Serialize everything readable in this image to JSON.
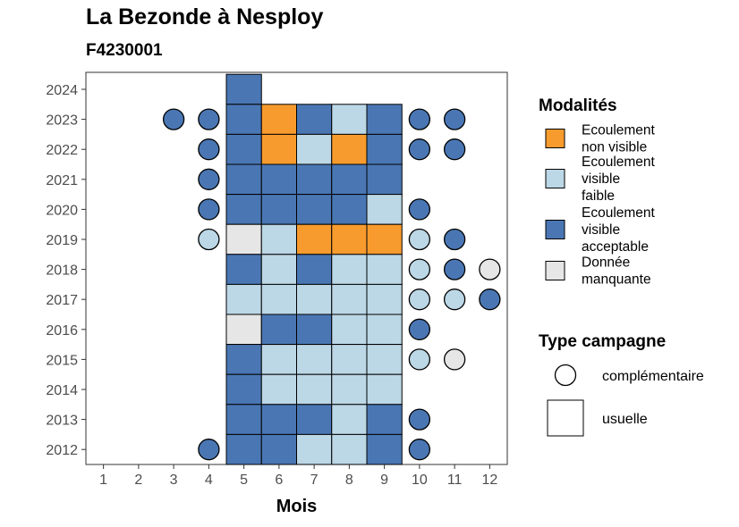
{
  "chart_data": {
    "type": "heatmap",
    "title": "La Bezonde à Nesploy",
    "subtitle": "F4230001",
    "xlabel": "Mois",
    "ylabel": "",
    "x_ticks": [
      1,
      2,
      3,
      4,
      5,
      6,
      7,
      8,
      9,
      10,
      11,
      12
    ],
    "y_ticks": [
      2012,
      2013,
      2014,
      2015,
      2016,
      2017,
      2018,
      2019,
      2020,
      2021,
      2022,
      2023,
      2024
    ],
    "xlim": [
      0.5,
      12.5
    ],
    "ylim": [
      2011.5,
      2024.5
    ],
    "grid": false,
    "legend": {
      "placement": "right",
      "modalites_title": "Modalités",
      "modalites": [
        {
          "key": "non_visible",
          "label": [
            "Ecoulement",
            "non visible"
          ],
          "color": "#F89B2E"
        },
        {
          "key": "faible",
          "label": [
            "Ecoulement",
            "visible",
            "faible"
          ],
          "color": "#BCD7E6"
        },
        {
          "key": "acceptable",
          "label": [
            "Ecoulement",
            "visible",
            "acceptable"
          ],
          "color": "#4A77B4"
        },
        {
          "key": "manquante",
          "label": [
            "Donnée",
            "manquante"
          ],
          "color": "#E6E6E6"
        }
      ],
      "campagne_title": "Type campagne",
      "campagnes": [
        {
          "key": "complementaire",
          "label": "complémentaire",
          "shape": "circle"
        },
        {
          "key": "usuelle",
          "label": "usuelle",
          "shape": "square"
        }
      ]
    },
    "observations": [
      {
        "year": 2024,
        "month": 5,
        "modalite": "acceptable",
        "campagne": "usuelle"
      },
      {
        "year": 2023,
        "month": 3,
        "modalite": "acceptable",
        "campagne": "complementaire"
      },
      {
        "year": 2023,
        "month": 4,
        "modalite": "acceptable",
        "campagne": "complementaire"
      },
      {
        "year": 2023,
        "month": 5,
        "modalite": "acceptable",
        "campagne": "usuelle"
      },
      {
        "year": 2023,
        "month": 6,
        "modalite": "non_visible",
        "campagne": "usuelle"
      },
      {
        "year": 2023,
        "month": 7,
        "modalite": "acceptable",
        "campagne": "usuelle"
      },
      {
        "year": 2023,
        "month": 8,
        "modalite": "faible",
        "campagne": "usuelle"
      },
      {
        "year": 2023,
        "month": 9,
        "modalite": "acceptable",
        "campagne": "usuelle"
      },
      {
        "year": 2023,
        "month": 10,
        "modalite": "acceptable",
        "campagne": "complementaire"
      },
      {
        "year": 2023,
        "month": 11,
        "modalite": "acceptable",
        "campagne": "complementaire"
      },
      {
        "year": 2022,
        "month": 4,
        "modalite": "acceptable",
        "campagne": "complementaire"
      },
      {
        "year": 2022,
        "month": 5,
        "modalite": "acceptable",
        "campagne": "usuelle"
      },
      {
        "year": 2022,
        "month": 6,
        "modalite": "non_visible",
        "campagne": "usuelle"
      },
      {
        "year": 2022,
        "month": 7,
        "modalite": "faible",
        "campagne": "usuelle"
      },
      {
        "year": 2022,
        "month": 8,
        "modalite": "non_visible",
        "campagne": "usuelle"
      },
      {
        "year": 2022,
        "month": 9,
        "modalite": "acceptable",
        "campagne": "usuelle"
      },
      {
        "year": 2022,
        "month": 10,
        "modalite": "acceptable",
        "campagne": "complementaire"
      },
      {
        "year": 2022,
        "month": 11,
        "modalite": "acceptable",
        "campagne": "complementaire"
      },
      {
        "year": 2021,
        "month": 4,
        "modalite": "acceptable",
        "campagne": "complementaire"
      },
      {
        "year": 2021,
        "month": 5,
        "modalite": "acceptable",
        "campagne": "usuelle"
      },
      {
        "year": 2021,
        "month": 6,
        "modalite": "acceptable",
        "campagne": "usuelle"
      },
      {
        "year": 2021,
        "month": 7,
        "modalite": "acceptable",
        "campagne": "usuelle"
      },
      {
        "year": 2021,
        "month": 8,
        "modalite": "acceptable",
        "campagne": "usuelle"
      },
      {
        "year": 2021,
        "month": 9,
        "modalite": "acceptable",
        "campagne": "usuelle"
      },
      {
        "year": 2020,
        "month": 4,
        "modalite": "acceptable",
        "campagne": "complementaire"
      },
      {
        "year": 2020,
        "month": 5,
        "modalite": "acceptable",
        "campagne": "usuelle"
      },
      {
        "year": 2020,
        "month": 6,
        "modalite": "acceptable",
        "campagne": "usuelle"
      },
      {
        "year": 2020,
        "month": 7,
        "modalite": "acceptable",
        "campagne": "usuelle"
      },
      {
        "year": 2020,
        "month": 8,
        "modalite": "acceptable",
        "campagne": "usuelle"
      },
      {
        "year": 2020,
        "month": 9,
        "modalite": "faible",
        "campagne": "usuelle"
      },
      {
        "year": 2020,
        "month": 10,
        "modalite": "acceptable",
        "campagne": "complementaire"
      },
      {
        "year": 2019,
        "month": 4,
        "modalite": "faible",
        "campagne": "complementaire"
      },
      {
        "year": 2019,
        "month": 5,
        "modalite": "manquante",
        "campagne": "usuelle"
      },
      {
        "year": 2019,
        "month": 6,
        "modalite": "faible",
        "campagne": "usuelle"
      },
      {
        "year": 2019,
        "month": 7,
        "modalite": "non_visible",
        "campagne": "usuelle"
      },
      {
        "year": 2019,
        "month": 8,
        "modalite": "non_visible",
        "campagne": "usuelle"
      },
      {
        "year": 2019,
        "month": 9,
        "modalite": "non_visible",
        "campagne": "usuelle"
      },
      {
        "year": 2019,
        "month": 10,
        "modalite": "faible",
        "campagne": "complementaire"
      },
      {
        "year": 2019,
        "month": 11,
        "modalite": "acceptable",
        "campagne": "complementaire"
      },
      {
        "year": 2018,
        "month": 5,
        "modalite": "acceptable",
        "campagne": "usuelle"
      },
      {
        "year": 2018,
        "month": 6,
        "modalite": "faible",
        "campagne": "usuelle"
      },
      {
        "year": 2018,
        "month": 7,
        "modalite": "acceptable",
        "campagne": "usuelle"
      },
      {
        "year": 2018,
        "month": 8,
        "modalite": "faible",
        "campagne": "usuelle"
      },
      {
        "year": 2018,
        "month": 9,
        "modalite": "faible",
        "campagne": "usuelle"
      },
      {
        "year": 2018,
        "month": 10,
        "modalite": "faible",
        "campagne": "complementaire"
      },
      {
        "year": 2018,
        "month": 11,
        "modalite": "acceptable",
        "campagne": "complementaire"
      },
      {
        "year": 2018,
        "month": 12,
        "modalite": "manquante",
        "campagne": "complementaire"
      },
      {
        "year": 2017,
        "month": 5,
        "modalite": "faible",
        "campagne": "usuelle"
      },
      {
        "year": 2017,
        "month": 6,
        "modalite": "faible",
        "campagne": "usuelle"
      },
      {
        "year": 2017,
        "month": 7,
        "modalite": "faible",
        "campagne": "usuelle"
      },
      {
        "year": 2017,
        "month": 8,
        "modalite": "faible",
        "campagne": "usuelle"
      },
      {
        "year": 2017,
        "month": 9,
        "modalite": "faible",
        "campagne": "usuelle"
      },
      {
        "year": 2017,
        "month": 10,
        "modalite": "faible",
        "campagne": "complementaire"
      },
      {
        "year": 2017,
        "month": 11,
        "modalite": "faible",
        "campagne": "complementaire"
      },
      {
        "year": 2017,
        "month": 12,
        "modalite": "acceptable",
        "campagne": "complementaire"
      },
      {
        "year": 2016,
        "month": 5,
        "modalite": "manquante",
        "campagne": "usuelle"
      },
      {
        "year": 2016,
        "month": 6,
        "modalite": "acceptable",
        "campagne": "usuelle"
      },
      {
        "year": 2016,
        "month": 7,
        "modalite": "acceptable",
        "campagne": "usuelle"
      },
      {
        "year": 2016,
        "month": 8,
        "modalite": "faible",
        "campagne": "usuelle"
      },
      {
        "year": 2016,
        "month": 9,
        "modalite": "faible",
        "campagne": "usuelle"
      },
      {
        "year": 2016,
        "month": 10,
        "modalite": "acceptable",
        "campagne": "complementaire"
      },
      {
        "year": 2015,
        "month": 5,
        "modalite": "acceptable",
        "campagne": "usuelle"
      },
      {
        "year": 2015,
        "month": 6,
        "modalite": "faible",
        "campagne": "usuelle"
      },
      {
        "year": 2015,
        "month": 7,
        "modalite": "faible",
        "campagne": "usuelle"
      },
      {
        "year": 2015,
        "month": 8,
        "modalite": "faible",
        "campagne": "usuelle"
      },
      {
        "year": 2015,
        "month": 9,
        "modalite": "faible",
        "campagne": "usuelle"
      },
      {
        "year": 2015,
        "month": 10,
        "modalite": "faible",
        "campagne": "complementaire"
      },
      {
        "year": 2015,
        "month": 11,
        "modalite": "manquante",
        "campagne": "complementaire"
      },
      {
        "year": 2014,
        "month": 5,
        "modalite": "acceptable",
        "campagne": "usuelle"
      },
      {
        "year": 2014,
        "month": 6,
        "modalite": "faible",
        "campagne": "usuelle"
      },
      {
        "year": 2014,
        "month": 7,
        "modalite": "faible",
        "campagne": "usuelle"
      },
      {
        "year": 2014,
        "month": 8,
        "modalite": "faible",
        "campagne": "usuelle"
      },
      {
        "year": 2014,
        "month": 9,
        "modalite": "faible",
        "campagne": "usuelle"
      },
      {
        "year": 2013,
        "month": 5,
        "modalite": "acceptable",
        "campagne": "usuelle"
      },
      {
        "year": 2013,
        "month": 6,
        "modalite": "acceptable",
        "campagne": "usuelle"
      },
      {
        "year": 2013,
        "month": 7,
        "modalite": "acceptable",
        "campagne": "usuelle"
      },
      {
        "year": 2013,
        "month": 8,
        "modalite": "faible",
        "campagne": "usuelle"
      },
      {
        "year": 2013,
        "month": 9,
        "modalite": "acceptable",
        "campagne": "usuelle"
      },
      {
        "year": 2013,
        "month": 10,
        "modalite": "acceptable",
        "campagne": "complementaire"
      },
      {
        "year": 2012,
        "month": 4,
        "modalite": "acceptable",
        "campagne": "complementaire"
      },
      {
        "year": 2012,
        "month": 5,
        "modalite": "acceptable",
        "campagne": "usuelle"
      },
      {
        "year": 2012,
        "month": 6,
        "modalite": "acceptable",
        "campagne": "usuelle"
      },
      {
        "year": 2012,
        "month": 7,
        "modalite": "faible",
        "campagne": "usuelle"
      },
      {
        "year": 2012,
        "month": 8,
        "modalite": "faible",
        "campagne": "usuelle"
      },
      {
        "year": 2012,
        "month": 9,
        "modalite": "acceptable",
        "campagne": "usuelle"
      },
      {
        "year": 2012,
        "month": 10,
        "modalite": "acceptable",
        "campagne": "complementaire"
      }
    ]
  }
}
